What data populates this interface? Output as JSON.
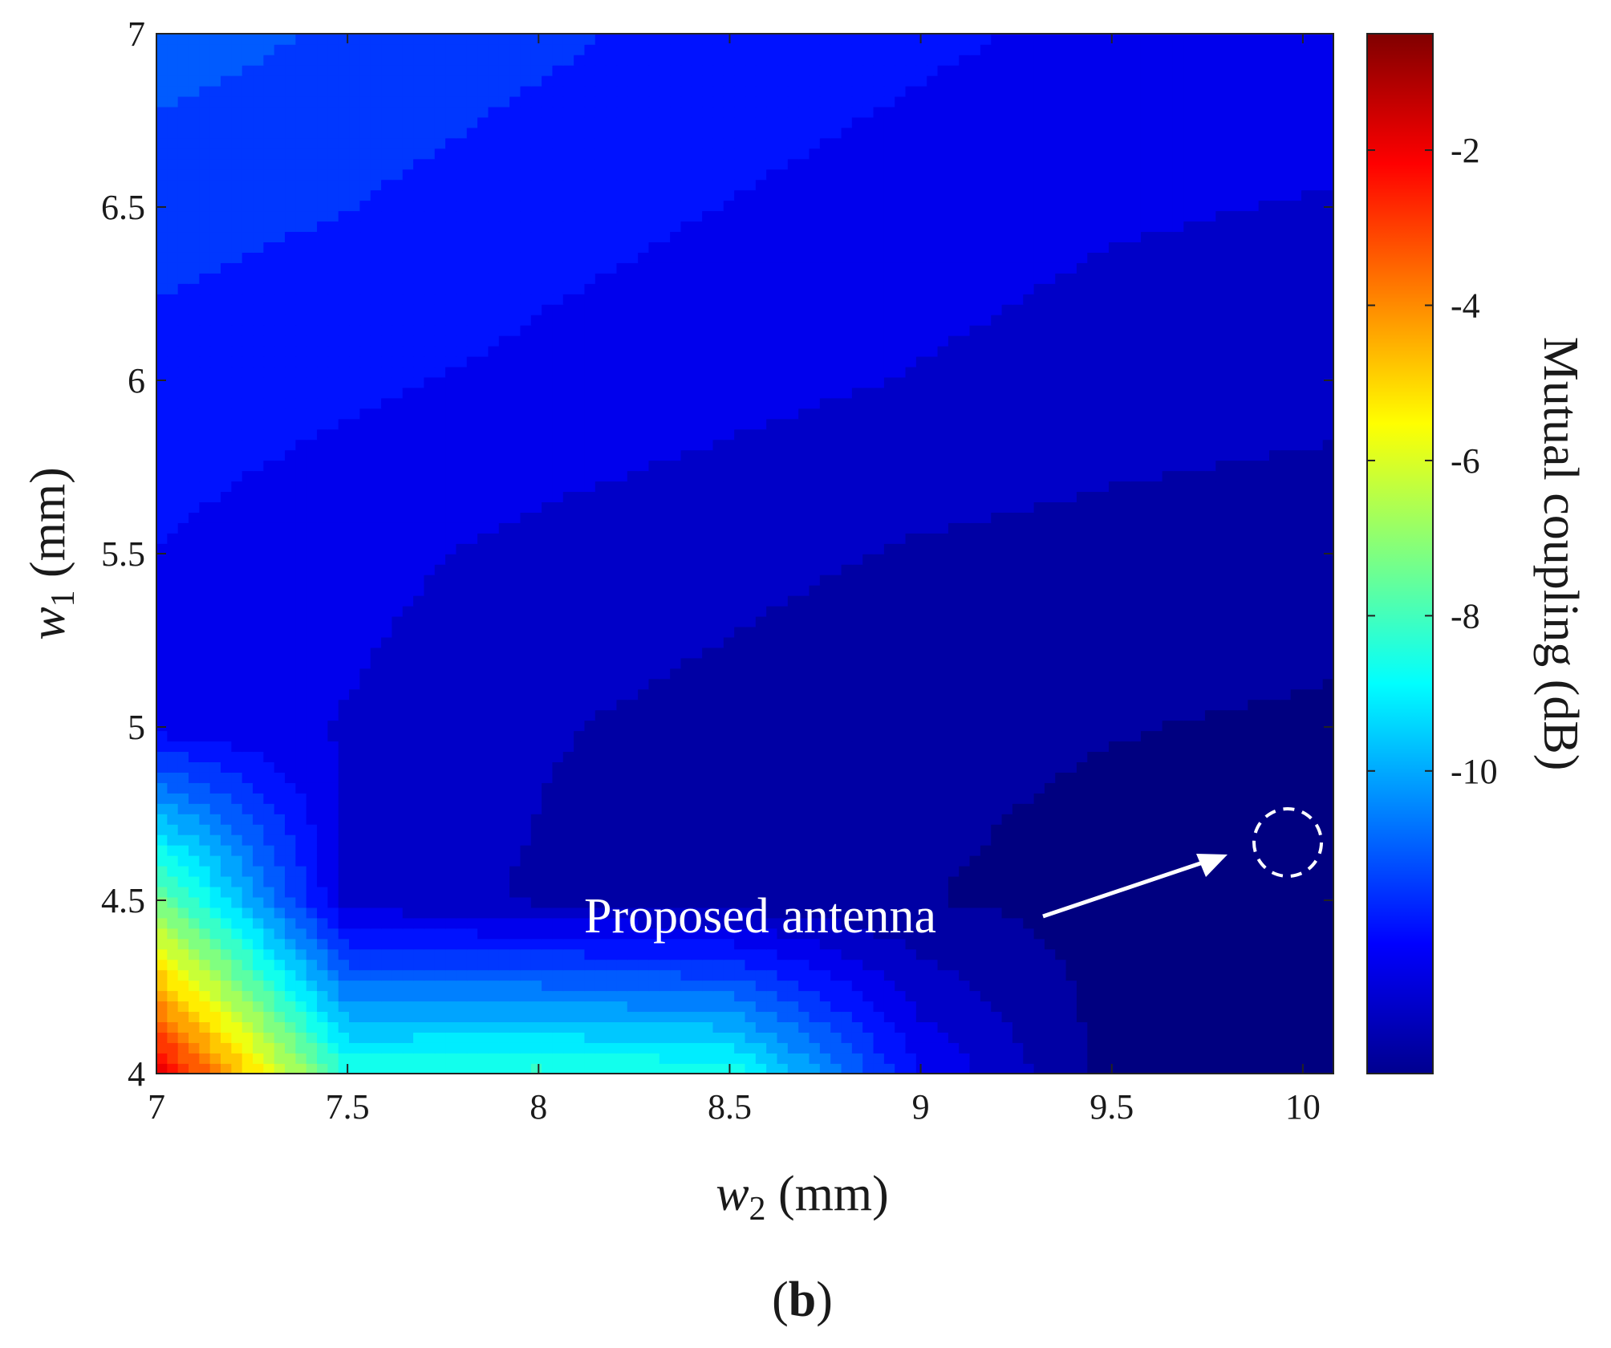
{
  "chart_data": {
    "type": "contour",
    "title": "",
    "xlabel": {
      "symbol": "w",
      "subscript": "2",
      "unit": " (mm)"
    },
    "ylabel": {
      "symbol": "w",
      "subscript": "1",
      "unit": " (mm)"
    },
    "xlim": [
      7,
      10.08
    ],
    "ylim": [
      4,
      7
    ],
    "xticks": [
      7,
      7.5,
      8,
      8.5,
      9,
      9.5,
      10
    ],
    "xtick_labels": [
      "7",
      "7.5",
      "8",
      "8.5",
      "9",
      "9.5",
      "10"
    ],
    "yticks": [
      4,
      4.5,
      5,
      5.5,
      6,
      6.5,
      7
    ],
    "ytick_labels": [
      "4",
      "4.5",
      "5",
      "5.5",
      "6",
      "6.5",
      "7"
    ],
    "colorbar": {
      "label": "Mutual coupling (dB)",
      "range": [
        -13.9,
        -0.5
      ],
      "ticks": [
        -2,
        -4,
        -6,
        -8,
        -10
      ],
      "tick_labels": [
        "-2",
        "-4",
        "-6",
        "-8",
        "-10"
      ],
      "colormap": "jet"
    },
    "grid": {
      "x": [
        7,
        7.5,
        8,
        8.5,
        9,
        9.5,
        10.08
      ],
      "y": [
        4,
        4.5,
        5,
        5.5,
        6,
        6.5,
        7
      ],
      "z": [
        [
          -1.5,
          -8.2,
          -8.0,
          -8.3,
          -12.0,
          -13.6,
          -13.8
        ],
        [
          -7.0,
          -12.7,
          -13.0,
          -13.2,
          -13.4,
          -13.6,
          -13.7
        ],
        [
          -12.2,
          -12.5,
          -12.9,
          -13.1,
          -13.3,
          -13.4,
          -13.5
        ],
        [
          -12.0,
          -12.3,
          -12.6,
          -12.8,
          -13.0,
          -13.1,
          -13.2
        ],
        [
          -11.7,
          -11.9,
          -12.1,
          -12.3,
          -12.5,
          -12.7,
          -12.8
        ],
        [
          -11.3,
          -11.5,
          -11.8,
          -12.0,
          -12.2,
          -12.4,
          -12.5
        ],
        [
          -10.8,
          -11.1,
          -11.4,
          -11.7,
          -11.9,
          -12.1,
          -12.2
        ]
      ]
    },
    "annotations": [
      {
        "text": "Proposed antenna",
        "arrow_to": {
          "x": 9.95,
          "y": 4.67
        },
        "marker": "dashed-circle",
        "color": "#ffffff"
      }
    ],
    "panel_label": {
      "open": "(",
      "letter": "b",
      "close": ")"
    }
  }
}
